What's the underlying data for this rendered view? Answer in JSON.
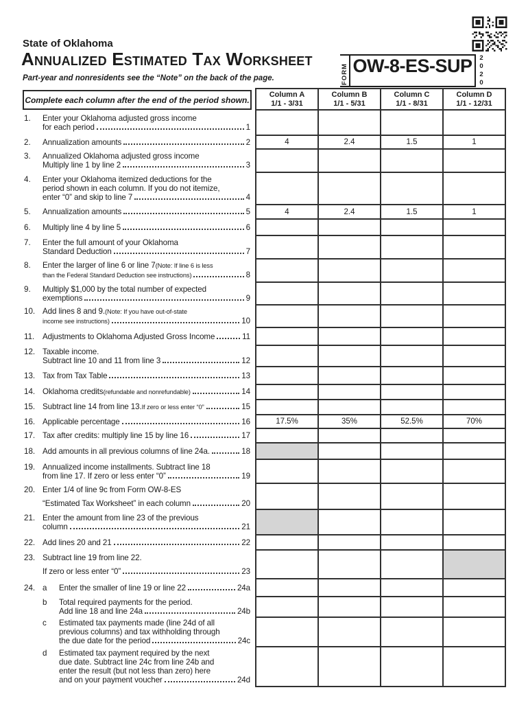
{
  "page": {
    "state_line": "State of Oklahoma",
    "title": "Annualized Estimated Tax Worksheet",
    "subtitle": "Part-year and nonresidents see the “Note” on the back of the page.",
    "form_label": "FORM",
    "form_number": "OW-8-ES-SUP",
    "year": "2020",
    "qr_icon": "qr-code"
  },
  "instruction_box": "Complete each column after the end of the period shown.",
  "columns": [
    {
      "label": "Column A",
      "period": "1/1 - 3/31"
    },
    {
      "label": "Column B",
      "period": "1/1 - 5/31"
    },
    {
      "label": "Column C",
      "period": "1/1 - 8/31"
    },
    {
      "label": "Column D",
      "period": "1/1 - 12/31"
    }
  ],
  "colors": {
    "shaded_cell": "#d5d5d5",
    "border": "#303030",
    "text": "#1b1b1b"
  },
  "rows": [
    {
      "num": "1.",
      "ref": "1",
      "h": 37,
      "lines": [
        {
          "seg": [
            {
              "t": "Enter your Oklahoma adjusted gross income"
            }
          ]
        },
        {
          "seg": [
            {
              "t": "for each period"
            }
          ],
          "leader": true
        }
      ]
    },
    {
      "num": "2.",
      "ref": "2",
      "h": 20,
      "lines": [
        {
          "seg": [
            {
              "t": "Annualization amounts"
            }
          ],
          "leader": true
        }
      ],
      "values": [
        "4",
        "2.4",
        "1.5",
        "1"
      ]
    },
    {
      "num": "3.",
      "ref": "3",
      "h": 34,
      "lines": [
        {
          "seg": [
            {
              "t": "Annualized Oklahoma adjusted gross income"
            }
          ]
        },
        {
          "seg": [
            {
              "t": "Multiply line 1 by line 2"
            }
          ],
          "leader": true
        }
      ]
    },
    {
      "num": "4.",
      "ref": "4",
      "h": 47,
      "lines": [
        {
          "seg": [
            {
              "t": "Enter your Oklahoma itemized deductions for the"
            }
          ]
        },
        {
          "seg": [
            {
              "t": "period shown in each column. If you do not itemize,"
            }
          ]
        },
        {
          "seg": [
            {
              "t": "enter “0” and skip to line 7"
            }
          ],
          "leader": true
        }
      ]
    },
    {
      "num": "5.",
      "ref": "5",
      "h": 21,
      "lines": [
        {
          "seg": [
            {
              "t": "Annualization amounts"
            }
          ],
          "leader": true
        }
      ],
      "values": [
        "4",
        "2.4",
        "1.5",
        "1"
      ]
    },
    {
      "num": "6.",
      "ref": "6",
      "h": 24,
      "lines": [
        {
          "seg": [
            {
              "t": "Multiply line 4 by line 5"
            }
          ],
          "leader": true
        }
      ]
    },
    {
      "num": "7.",
      "ref": "7",
      "h": 34,
      "lines": [
        {
          "seg": [
            {
              "t": "Enter the full amount of your Oklahoma"
            }
          ]
        },
        {
          "seg": [
            {
              "t": "Standard Deduction"
            }
          ],
          "leader": true
        }
      ]
    },
    {
      "num": "8.",
      "ref": "8",
      "h": 34,
      "lines": [
        {
          "seg": [
            {
              "t": "Enter the larger of line 6 or line 7 "
            },
            {
              "t": "(Note: If line 6 is less",
              "s": true
            }
          ]
        },
        {
          "seg": [
            {
              "t": "than the Federal Standard Deduction see instructions)",
              "s": true
            }
          ],
          "leader": true
        }
      ]
    },
    {
      "num": "9.",
      "ref": "9",
      "h": 33,
      "lines": [
        {
          "seg": [
            {
              "t": "Multiply $1,000 by the total number of expected"
            }
          ]
        },
        {
          "seg": [
            {
              "t": "exemptions"
            }
          ],
          "leader": true
        }
      ]
    },
    {
      "num": "10.",
      "ref": "10",
      "h": 33,
      "lines": [
        {
          "seg": [
            {
              "t": "Add lines 8 and 9. "
            },
            {
              "t": "(Note: If you have out-of-state",
              "s": true
            }
          ]
        },
        {
          "seg": [
            {
              "t": "income see instructions)",
              "s": true
            }
          ],
          "leader": true
        }
      ]
    },
    {
      "num": "11.",
      "ref": "11",
      "h": 26,
      "lines": [
        {
          "seg": [
            {
              "t": "Adjustments to Oklahoma Adjusted Gross Income"
            }
          ],
          "leader": true
        }
      ]
    },
    {
      "num": "12.",
      "ref": "12",
      "h": 31,
      "lines": [
        {
          "seg": [
            {
              "t": "Taxable income."
            }
          ]
        },
        {
          "seg": [
            {
              "t": "Subtract line 10 and 11 from line 3"
            }
          ],
          "leader": true
        }
      ]
    },
    {
      "num": "13.",
      "ref": "13",
      "h": 26,
      "lines": [
        {
          "seg": [
            {
              "t": "Tax from Tax Table"
            }
          ],
          "leader": true
        }
      ]
    },
    {
      "num": "14.",
      "ref": "14",
      "h": 22,
      "lines": [
        {
          "seg": [
            {
              "t": "Oklahoma credits "
            },
            {
              "t": "(refundable and nonrefundable)",
              "s": true
            }
          ],
          "leader": true
        }
      ]
    },
    {
      "num": "15.",
      "ref": "15",
      "h": 22,
      "lines": [
        {
          "seg": [
            {
              "t": "Subtract line 14 from line 13.  "
            },
            {
              "t": "If zero or less enter “0”",
              "s": true
            }
          ],
          "leader": true
        }
      ]
    },
    {
      "num": "16.",
      "ref": "16",
      "h": 20,
      "lines": [
        {
          "seg": [
            {
              "t": "Applicable percentage"
            }
          ],
          "leader": true
        }
      ],
      "values": [
        "17.5%",
        "35%",
        "52.5%",
        "70%"
      ]
    },
    {
      "num": "17.",
      "ref": "17",
      "h": 21,
      "lines": [
        {
          "seg": [
            {
              "t": "Tax after credits:  multiply line 15 by line 16"
            }
          ],
          "leader": true
        }
      ]
    },
    {
      "num": "18.",
      "ref": "18",
      "h": 24,
      "lines": [
        {
          "seg": [
            {
              "t": "Add amounts in all previous columns of line 24a."
            }
          ],
          "leader": true
        }
      ],
      "shade": [
        true,
        false,
        false,
        false
      ]
    },
    {
      "num": "19.",
      "ref": "19",
      "h": 35,
      "lines": [
        {
          "seg": [
            {
              "t": "Annualized income installments.  Subtract line 18"
            }
          ]
        },
        {
          "seg": [
            {
              "t": "from line 17.  If zero or less enter “0”"
            }
          ],
          "leader": true
        }
      ]
    },
    {
      "num": "20.",
      "ref": "20",
      "h": 38,
      "sp": true,
      "lines": [
        {
          "seg": [
            {
              "t": "Enter 1/4 of line 9c from Form OW-8-ES"
            }
          ]
        },
        {
          "seg": [
            {
              "t": "“Estimated Tax Worksheet” in each column"
            }
          ],
          "leader": true
        }
      ]
    },
    {
      "num": "21.",
      "ref": "21",
      "h": 37,
      "lines": [
        {
          "seg": [
            {
              "t": "Enter the amount from line 23 of the previous"
            }
          ]
        },
        {
          "seg": [
            {
              "t": "column"
            }
          ],
          "leader": true
        }
      ],
      "shade": [
        true,
        false,
        false,
        false
      ]
    },
    {
      "num": "22.",
      "ref": "22",
      "h": 22,
      "lines": [
        {
          "seg": [
            {
              "t": "Add lines 20 and 21"
            }
          ],
          "leader": true
        }
      ]
    },
    {
      "num": "23.",
      "ref": "23",
      "h": 42,
      "sp": true,
      "lines": [
        {
          "seg": [
            {
              "t": "Subtract line 19 from line 22."
            }
          ]
        },
        {
          "seg": [
            {
              "t": "If zero or less enter “0”"
            }
          ],
          "leader": true
        }
      ],
      "shade": [
        false,
        false,
        false,
        true
      ]
    },
    {
      "num": "24.",
      "letter": "a",
      "ref": "24a",
      "h": 26,
      "lines": [
        {
          "seg": [
            {
              "t": "Enter the smaller of line 19 or line 22"
            }
          ],
          "leader": true
        }
      ]
    },
    {
      "num": "",
      "letter": "b",
      "ref": "24b",
      "h": 30,
      "lines": [
        {
          "seg": [
            {
              "t": "Total required payments for the period."
            }
          ]
        },
        {
          "seg": [
            {
              "t": "Add line 18 and line 24a"
            }
          ],
          "leader": true
        }
      ]
    },
    {
      "num": "",
      "letter": "c",
      "ref": "24c",
      "h": 43,
      "lines": [
        {
          "seg": [
            {
              "t": "Estimated tax payments made (line 24d of all"
            }
          ]
        },
        {
          "seg": [
            {
              "t": "previous columns) and tax withholding through"
            }
          ]
        },
        {
          "seg": [
            {
              "t": "the due date for the period"
            }
          ],
          "leader": true
        }
      ]
    },
    {
      "num": "",
      "letter": "d",
      "ref": "24d",
      "h": 58,
      "lines": [
        {
          "seg": [
            {
              "t": "Estimated tax payment required by the next"
            }
          ]
        },
        {
          "seg": [
            {
              "t": "due date. Subtract line 24c from line 24b and"
            }
          ]
        },
        {
          "seg": [
            {
              "t": "enter the result (but not less than zero) here"
            }
          ]
        },
        {
          "seg": [
            {
              "t": "and on your payment voucher"
            }
          ],
          "leader": true
        }
      ]
    }
  ]
}
